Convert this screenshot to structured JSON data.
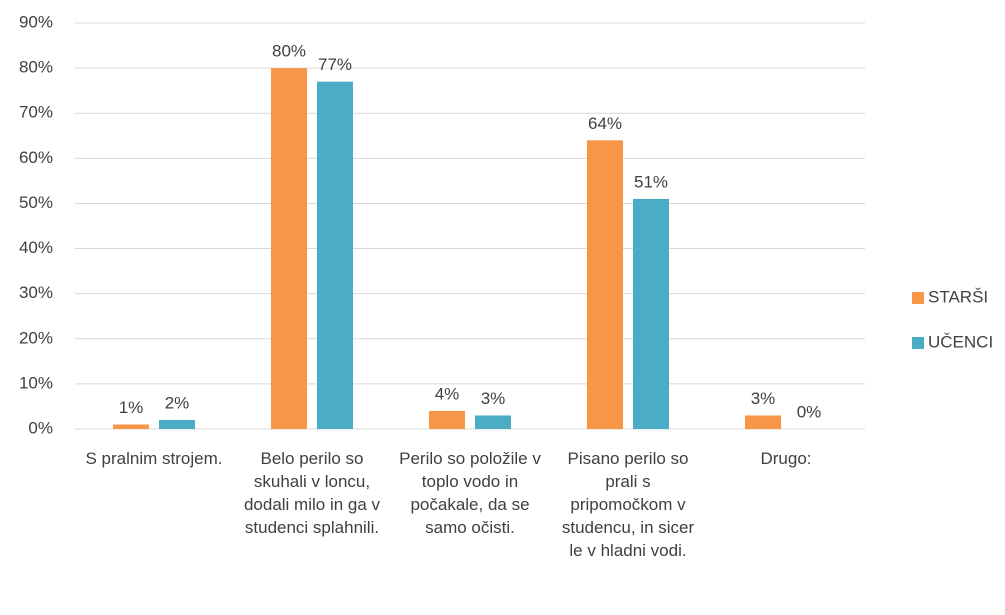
{
  "chart_data": {
    "type": "bar",
    "categories": [
      "S pralnim strojem.",
      "Belo perilo so skuhali v loncu, dodali milo in ga v studenci splahnili.",
      "Perilo so položile v toplo vodo in počakale, da se samo očisti.",
      "Pisano perilo so prali s pripomočkom v studencu, in sicer le v hladni vodi.",
      "Drugo:"
    ],
    "series": [
      {
        "name": "STARŠI",
        "color": "#f79646",
        "values": [
          1,
          80,
          4,
          64,
          3
        ],
        "value_labels": [
          "1%",
          "80%",
          "4%",
          "64%",
          "3%"
        ]
      },
      {
        "name": "UČENCI",
        "color": "#4bacc6",
        "values": [
          2,
          77,
          3,
          51,
          0
        ],
        "value_labels": [
          "2%",
          "77%",
          "3%",
          "51%",
          "0%"
        ]
      }
    ],
    "ylim": [
      0,
      90
    ],
    "yticks": [
      {
        "value": 0,
        "label": "0%"
      },
      {
        "value": 10,
        "label": "10%"
      },
      {
        "value": 20,
        "label": "20%"
      },
      {
        "value": 30,
        "label": "30%"
      },
      {
        "value": 40,
        "label": "40%"
      },
      {
        "value": 50,
        "label": "50%"
      },
      {
        "value": 60,
        "label": "60%"
      },
      {
        "value": 70,
        "label": "70%"
      },
      {
        "value": 80,
        "label": "80%"
      },
      {
        "value": 90,
        "label": "90%"
      }
    ],
    "grid": true,
    "legend": "right"
  }
}
